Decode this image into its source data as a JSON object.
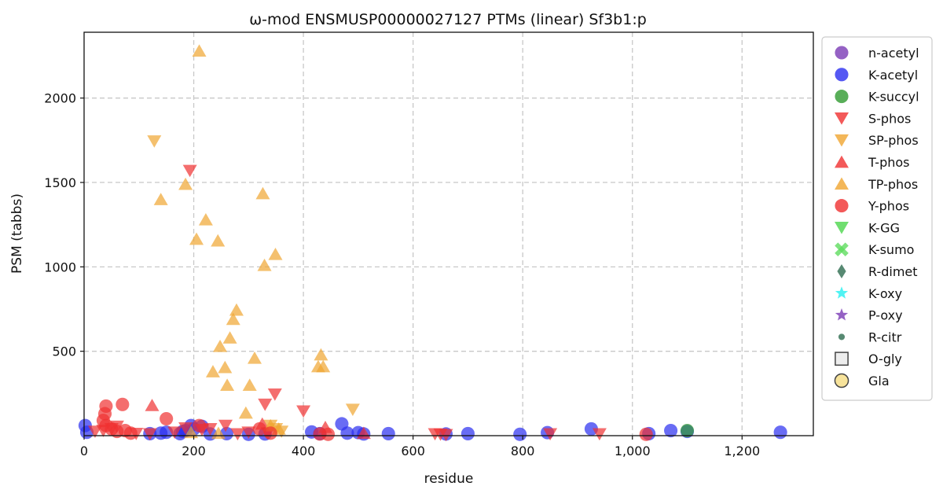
{
  "chart_data": {
    "type": "scatter",
    "title": "ω-mod ENSMUSP00000027127 PTMs (linear) Sf3b1:p",
    "xlabel": "residue",
    "ylabel": "PSM (tabbs)",
    "xlim": [
      0,
      1330
    ],
    "ylim": [
      0,
      2390
    ],
    "x_ticks": [
      0,
      200,
      400,
      600,
      800,
      1000,
      1200
    ],
    "x_tick_labels": [
      "0",
      "200",
      "400",
      "600",
      "800",
      "1,000",
      "1,200"
    ],
    "y_ticks": [
      500,
      1000,
      1500,
      2000
    ],
    "y_tick_labels": [
      "500",
      "1000",
      "1500",
      "2000"
    ],
    "grid": true,
    "legend_position": "outside-right",
    "series": [
      {
        "name": "n-acetyl",
        "marker": "circle",
        "color": "#7b3bb5",
        "points": []
      },
      {
        "name": "K-acetyl",
        "marker": "circle",
        "color": "#2a2ef0",
        "points": [
          [
            2,
            60
          ],
          [
            5,
            20
          ],
          [
            120,
            12
          ],
          [
            140,
            15
          ],
          [
            150,
            20
          ],
          [
            175,
            12
          ],
          [
            180,
            25
          ],
          [
            185,
            30
          ],
          [
            195,
            60
          ],
          [
            200,
            40
          ],
          [
            215,
            55
          ],
          [
            230,
            10
          ],
          [
            260,
            12
          ],
          [
            300,
            8
          ],
          [
            330,
            10
          ],
          [
            415,
            22
          ],
          [
            430,
            12
          ],
          [
            470,
            70
          ],
          [
            480,
            15
          ],
          [
            500,
            18
          ],
          [
            510,
            10
          ],
          [
            555,
            12
          ],
          [
            660,
            10
          ],
          [
            700,
            12
          ],
          [
            795,
            8
          ],
          [
            845,
            18
          ],
          [
            925,
            40
          ],
          [
            1030,
            12
          ],
          [
            1070,
            30
          ],
          [
            1100,
            25
          ],
          [
            1270,
            20
          ]
        ]
      },
      {
        "name": "K-succyl",
        "marker": "circle",
        "color": "#2f9a2f",
        "points": [
          [
            1100,
            30
          ]
        ]
      },
      {
        "name": "S-phos",
        "marker": "tri-down",
        "color": "#f03030",
        "points": [
          [
            193,
            1570
          ],
          [
            400,
            145
          ],
          [
            348,
            245
          ],
          [
            330,
            185
          ],
          [
            258,
            60
          ],
          [
            230,
            40
          ],
          [
            215,
            35
          ],
          [
            185,
            45
          ],
          [
            165,
            20
          ],
          [
            120,
            10
          ],
          [
            95,
            12
          ],
          [
            60,
            55
          ],
          [
            50,
            40
          ],
          [
            35,
            30
          ],
          [
            20,
            25
          ],
          [
            300,
            20
          ],
          [
            280,
            10
          ],
          [
            335,
            15
          ],
          [
            640,
            10
          ],
          [
            650,
            8
          ],
          [
            660,
            5
          ],
          [
            850,
            10
          ],
          [
            940,
            10
          ]
        ]
      },
      {
        "name": "SP-phos",
        "marker": "tri-down",
        "color": "#f0a530",
        "points": [
          [
            128,
            1745
          ],
          [
            490,
            155
          ],
          [
            340,
            60
          ],
          [
            350,
            40
          ],
          [
            360,
            25
          ]
        ]
      },
      {
        "name": "T-phos",
        "marker": "tri-up",
        "color": "#f03030",
        "points": [
          [
            124,
            180
          ],
          [
            325,
            70
          ],
          [
            440,
            50
          ],
          [
            510,
            15
          ]
        ]
      },
      {
        "name": "TP-phos",
        "marker": "tri-up",
        "color": "#f0a530",
        "points": [
          [
            210,
            2280
          ],
          [
            140,
            1400
          ],
          [
            185,
            1490
          ],
          [
            205,
            1165
          ],
          [
            222,
            1280
          ],
          [
            244,
            1155
          ],
          [
            326,
            1435
          ],
          [
            329,
            1010
          ],
          [
            349,
            1075
          ],
          [
            278,
            745
          ],
          [
            272,
            690
          ],
          [
            266,
            580
          ],
          [
            248,
            530
          ],
          [
            257,
            405
          ],
          [
            235,
            380
          ],
          [
            261,
            300
          ],
          [
            311,
            460
          ],
          [
            302,
            300
          ],
          [
            295,
            135
          ],
          [
            427,
            410
          ],
          [
            432,
            480
          ],
          [
            436,
            410
          ],
          [
            340,
            60
          ],
          [
            355,
            40
          ],
          [
            195,
            20
          ],
          [
            245,
            15
          ]
        ]
      },
      {
        "name": "Y-phos",
        "marker": "circle",
        "color": "#f03030",
        "points": [
          [
            40,
            175
          ],
          [
            70,
            185
          ],
          [
            38,
            130
          ],
          [
            35,
            90
          ],
          [
            40,
            60
          ],
          [
            50,
            40
          ],
          [
            60,
            25
          ],
          [
            75,
            30
          ],
          [
            85,
            15
          ],
          [
            150,
            100
          ],
          [
            210,
            60
          ],
          [
            320,
            40
          ],
          [
            340,
            15
          ],
          [
            430,
            10
          ],
          [
            445,
            8
          ],
          [
            1025,
            8
          ]
        ]
      },
      {
        "name": "K-GG",
        "marker": "tri-down",
        "color": "#4cd64c",
        "points": []
      },
      {
        "name": "K-sumo",
        "marker": "x",
        "color": "#5fdc5f",
        "points": []
      },
      {
        "name": "R-dimet",
        "marker": "diamond",
        "color": "#2d6b4f",
        "points": []
      },
      {
        "name": "K-oxy",
        "marker": "star",
        "color": "#26f0f0",
        "points": []
      },
      {
        "name": "P-oxy",
        "marker": "star",
        "color": "#7b3bb5",
        "points": []
      },
      {
        "name": "R-citr",
        "marker": "small-circle",
        "color": "#2d6b4f",
        "points": []
      },
      {
        "name": "O-gly",
        "marker": "square-open",
        "color": "#e8e8e8",
        "points": []
      },
      {
        "name": "Gla",
        "marker": "circle-open",
        "color": "#f5dc82",
        "points": []
      }
    ]
  }
}
